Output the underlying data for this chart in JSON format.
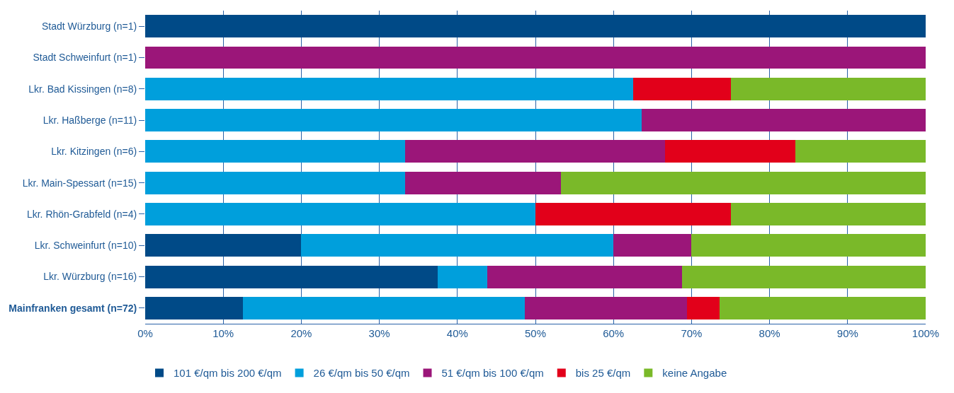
{
  "chart_data": {
    "type": "bar",
    "orientation": "horizontal",
    "stacked": true,
    "categories": [
      "Stadt Würzburg (n=1)",
      "Stadt Schweinfurt (n=1)",
      "Lkr. Bad Kissingen (n=8)",
      "Lkr. Haßberge (n=11)",
      "Lkr. Kitzingen (n=6)",
      "Lkr. Main-Spessart (n=15)",
      "Lkr. Rhön-Grabfeld (n=4)",
      "Lkr. Schweinfurt (n=10)",
      "Lkr. Würzburg (n=16)",
      "Mainfranken gesamt (n=72)"
    ],
    "series": [
      {
        "name": "101 €/qm bis 200 €/qm",
        "color": "#004a87",
        "values": [
          100,
          0,
          0,
          0,
          0,
          0,
          0,
          20,
          37.5,
          12.5
        ]
      },
      {
        "name": "26 €/qm bis 50 €/qm",
        "color": "#009fdc",
        "values": [
          0,
          0,
          62.5,
          63.6,
          33.3,
          33.3,
          50,
          40,
          6.3,
          36.1
        ]
      },
      {
        "name": "51 €/qm bis 100 €/qm",
        "color": "#9b1679",
        "values": [
          0,
          100,
          0,
          36.4,
          33.3,
          20,
          0,
          10,
          25,
          20.8
        ]
      },
      {
        "name": "bis 25 €/qm",
        "color": "#e2001a",
        "values": [
          0,
          0,
          12.5,
          0,
          16.7,
          0,
          25,
          0,
          0,
          4.2
        ]
      },
      {
        "name": "keine Angabe",
        "color": "#7ab929",
        "values": [
          0,
          0,
          25,
          0,
          16.7,
          46.7,
          25,
          30,
          31.2,
          26.4
        ]
      }
    ],
    "xlim": [
      0,
      100
    ],
    "xticks": [
      {
        "value": 0,
        "label": "0%"
      },
      {
        "value": 10,
        "label": "10%"
      },
      {
        "value": 20,
        "label": "20%"
      },
      {
        "value": 30,
        "label": "30%"
      },
      {
        "value": 40,
        "label": "40%"
      },
      {
        "value": 50,
        "label": "50%"
      },
      {
        "value": 60,
        "label": "60%"
      },
      {
        "value": 70,
        "label": "70%"
      },
      {
        "value": 80,
        "label": "80%"
      },
      {
        "value": 90,
        "label": "90%"
      },
      {
        "value": 100,
        "label": "100%"
      }
    ],
    "grid": "x",
    "legend": "bottom"
  }
}
